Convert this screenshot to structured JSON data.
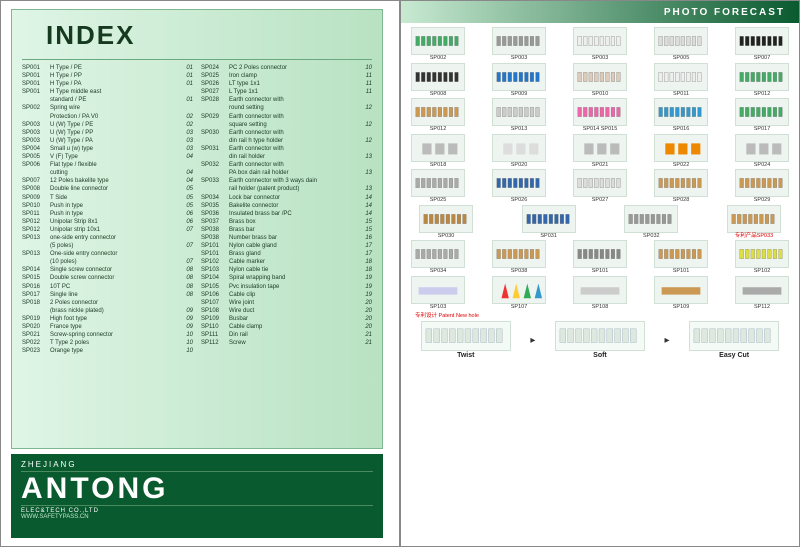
{
  "left": {
    "title": "INDEX",
    "brand": {
      "top": "ZHEJIANG",
      "name": "ANTONG",
      "sub": "ELEC&TECH CO.,LTD",
      "url": "WWW.SAFETYPASS.CN"
    },
    "col1": [
      {
        "c": "SP001",
        "d": "H Type / PE",
        "p": "01"
      },
      {
        "c": "SP001",
        "d": "H Type / PP",
        "p": "01"
      },
      {
        "c": "SP001",
        "d": "H Type / PA",
        "p": "01"
      },
      {
        "c": "SP001",
        "d": "H Type middle east",
        "p": ""
      },
      {
        "c": "",
        "d": "standard / PE",
        "p": "01"
      },
      {
        "c": "SP002",
        "d": "Spring wire",
        "p": ""
      },
      {
        "c": "",
        "d": "Protection / PA V0",
        "p": "02"
      },
      {
        "c": "SP003",
        "d": "U (W) Type / PE",
        "p": "02"
      },
      {
        "c": "SP003",
        "d": "U (W) Type / PP",
        "p": "03"
      },
      {
        "c": "SP003",
        "d": "U (W) Type / PA",
        "p": "03"
      },
      {
        "c": "SP004",
        "d": "Small u (w) type",
        "p": "03"
      },
      {
        "c": "SP005",
        "d": "V (F) Type",
        "p": "04"
      },
      {
        "c": "SP006",
        "d": "Flat type / flexible",
        "p": ""
      },
      {
        "c": "",
        "d": "cutting",
        "p": "04"
      },
      {
        "c": "SP007",
        "d": "12 Poles bakelite type",
        "p": "04"
      },
      {
        "c": "SP008",
        "d": "Double line connector",
        "p": "05"
      },
      {
        "c": "SP009",
        "d": "T Side",
        "p": "05"
      },
      {
        "c": "SP010",
        "d": "Push in type",
        "p": "05"
      },
      {
        "c": "SP011",
        "d": "Push in type",
        "p": "06"
      },
      {
        "c": "SP012",
        "d": "Unipolar Strip 8x1",
        "p": "06"
      },
      {
        "c": "SP012",
        "d": "Unipolar strip 10x1",
        "p": "07"
      },
      {
        "c": "SP013",
        "d": "one-side entry connector",
        "p": ""
      },
      {
        "c": "",
        "d": "(5 poles)",
        "p": "07"
      },
      {
        "c": "SP013",
        "d": "One-side entry connector",
        "p": ""
      },
      {
        "c": "",
        "d": "(10 poles)",
        "p": "07"
      },
      {
        "c": "SP014",
        "d": "Single screw connector",
        "p": "08"
      },
      {
        "c": "SP015",
        "d": "Double screw connector",
        "p": "08"
      },
      {
        "c": "SP016",
        "d": "10T PC",
        "p": "08"
      },
      {
        "c": "SP017",
        "d": "Single line",
        "p": "08"
      },
      {
        "c": "SP018",
        "d": "2 Poles connector",
        "p": ""
      },
      {
        "c": "",
        "d": "(brass nickle plated)",
        "p": "09"
      },
      {
        "c": "SP019",
        "d": "High foot type",
        "p": "09"
      },
      {
        "c": "SP020",
        "d": "France type",
        "p": "09"
      },
      {
        "c": "SP021",
        "d": "Screw-spring connector",
        "p": "10"
      },
      {
        "c": "SP022",
        "d": "T Type 2 poles",
        "p": "10"
      },
      {
        "c": "SP023",
        "d": "Orange type",
        "p": "10"
      }
    ],
    "col2": [
      {
        "c": "SP024",
        "d": "PC 2 Poles connector",
        "p": "10"
      },
      {
        "c": "SP025",
        "d": "Iron clamp",
        "p": "11"
      },
      {
        "c": "SP026",
        "d": "LT type 1x1",
        "p": "11"
      },
      {
        "c": "SP027",
        "d": "L Type 1x1",
        "p": "11"
      },
      {
        "c": "SP028",
        "d": "Earth connector with",
        "p": ""
      },
      {
        "c": "",
        "d": "round setting",
        "p": "12"
      },
      {
        "c": "SP029",
        "d": "Earth connector with",
        "p": ""
      },
      {
        "c": "",
        "d": "square setting",
        "p": "12"
      },
      {
        "c": "SP030",
        "d": "Earth connector with",
        "p": ""
      },
      {
        "c": "",
        "d": "din rail h type holder",
        "p": "12"
      },
      {
        "c": "SP031",
        "d": "Earth connector with",
        "p": ""
      },
      {
        "c": "",
        "d": "din rail holder",
        "p": "13"
      },
      {
        "c": "SP032",
        "d": "Earth connector with",
        "p": ""
      },
      {
        "c": "",
        "d": "PA box dain rail holder",
        "p": "13"
      },
      {
        "c": "SP033",
        "d": "Earth connector with 3 ways dain",
        "p": ""
      },
      {
        "c": "",
        "d": "rail holder (patent product)",
        "p": "13"
      },
      {
        "c": "SP034",
        "d": "Lock bar connector",
        "p": "14"
      },
      {
        "c": "SP035",
        "d": "Bakelite connector",
        "p": "14"
      },
      {
        "c": "SP036",
        "d": "Insulated brass bar /PC",
        "p": "14"
      },
      {
        "c": "SP037",
        "d": "Brass box",
        "p": "15"
      },
      {
        "c": "SP038",
        "d": "Brass bar",
        "p": "15"
      },
      {
        "c": "SP038",
        "d": "Number brass bar",
        "p": "16"
      },
      {
        "c": "SP101",
        "d": "Nylon cable gland",
        "p": "17"
      },
      {
        "c": "SP101",
        "d": "Brass gland",
        "p": "17"
      },
      {
        "c": "SP102",
        "d": "Cable marker",
        "p": "18"
      },
      {
        "c": "SP103",
        "d": "Nylon cable tie",
        "p": "18"
      },
      {
        "c": "SP104",
        "d": "Spiral wrapping band",
        "p": "19"
      },
      {
        "c": "SP105",
        "d": "Pvc insulation tape",
        "p": "19"
      },
      {
        "c": "SP106",
        "d": "Cable clip",
        "p": "19"
      },
      {
        "c": "SP107",
        "d": "Wire joint",
        "p": "20"
      },
      {
        "c": "SP108",
        "d": "Wire duct",
        "p": "20"
      },
      {
        "c": "SP109",
        "d": "Busbar",
        "p": "20"
      },
      {
        "c": "SP110",
        "d": "Cable clamp",
        "p": "20"
      },
      {
        "c": "SP111",
        "d": "Din rail",
        "p": "21"
      },
      {
        "c": "SP112",
        "d": "Screw",
        "p": "21"
      }
    ]
  },
  "right": {
    "banner": "PHOTO FORECAST",
    "rows": [
      [
        {
          "l": "SP002",
          "c": "#4a6"
        },
        {
          "l": "SP003",
          "c": "#999"
        },
        {
          "l": "SP003",
          "c": "#eee"
        },
        {
          "l": "SP005",
          "c": "#ddd"
        },
        {
          "l": "SP007",
          "c": "#222"
        }
      ],
      [
        {
          "l": "SP008",
          "c": "#333"
        },
        {
          "l": "SP009",
          "c": "#27c"
        },
        {
          "l": "SP010",
          "c": "#dcb"
        },
        {
          "l": "SP011",
          "c": "#eee"
        },
        {
          "l": "SP012",
          "c": "#4a6"
        }
      ],
      [
        {
          "l": "SP012",
          "c": "#c95"
        },
        {
          "l": "SP013",
          "c": "#ccc"
        },
        {
          "l": "SP014  SP015",
          "c": "#e6a"
        },
        {
          "l": "SP016",
          "c": "#39c"
        },
        {
          "l": "SP017",
          "c": "#4a6"
        }
      ],
      [
        {
          "l": "SP018",
          "c": "#bbb"
        },
        {
          "l": "SP020",
          "c": "#ddd"
        },
        {
          "l": "SP021",
          "c": "#bbb"
        },
        {
          "l": "SP022",
          "c": "#e80"
        },
        {
          "l": "SP024",
          "c": "#bbb"
        }
      ],
      [
        {
          "l": "SP025",
          "c": "#aaa"
        },
        {
          "l": "SP026",
          "c": "#36a"
        },
        {
          "l": "SP027",
          "c": "#ddd"
        },
        {
          "l": "SP028",
          "c": "#c95"
        },
        {
          "l": "SP029",
          "c": "#c95"
        }
      ],
      [
        {
          "l": "SP030",
          "c": "#b84"
        },
        {
          "l": "SP031",
          "c": "#36a"
        },
        {
          "l": "SP032",
          "c": "#999"
        },
        {
          "l": "专利产品SP033",
          "c": "#c95",
          "r": true
        },
        {
          "l": "",
          "c": ""
        }
      ],
      [
        {
          "l": "SP034",
          "c": "#aaa"
        },
        {
          "l": "SP038",
          "c": "#c95"
        },
        {
          "l": "SP101",
          "c": "#888"
        },
        {
          "l": "SP101",
          "c": "#c95"
        },
        {
          "l": "SP102",
          "c": "#dd4"
        }
      ],
      [
        {
          "l": "SP103",
          "c": "#cce"
        },
        {
          "l": "SP107",
          "c": "#e55"
        },
        {
          "l": "SP108",
          "c": "#ccc"
        },
        {
          "l": "SP109",
          "c": "#c95"
        },
        {
          "l": "SP112",
          "c": "#aaa"
        }
      ]
    ],
    "patent_note": "专利设计\nPatent New hole",
    "footer": [
      {
        "l": "Twist"
      },
      {
        "l": "Soft"
      },
      {
        "l": "Easy Cut"
      }
    ]
  }
}
